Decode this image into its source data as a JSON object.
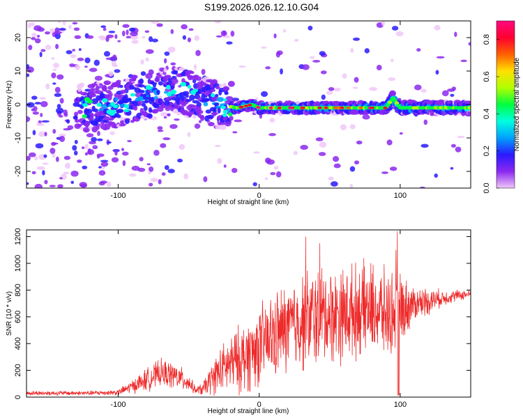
{
  "title": "S199.2026.026.12.10.G04",
  "chart_data": [
    {
      "type": "heatmap",
      "title": "S199.2026.026.12.10.G04",
      "xlabel": "Height of straight line (km)",
      "ylabel": "Frequency (Hz)",
      "xlim": [
        -165,
        150
      ],
      "ylim": [
        -25,
        25
      ],
      "xticks": [
        -100,
        0,
        100
      ],
      "yticks": [
        -20,
        -10,
        0,
        10,
        20
      ],
      "colorbar": {
        "label": "Normalized spectral amplitude",
        "range": [
          0.0,
          0.9
        ],
        "ticks": [
          0.0,
          0.2,
          0.4,
          0.6,
          0.8
        ],
        "colors": [
          "#f0c8f8",
          "#8c28f0",
          "#2a1aff",
          "#00a0ff",
          "#00ffe0",
          "#00ff40",
          "#b0ff00",
          "#ffe000",
          "#ff6000",
          "#ff0030",
          "#ff0a80"
        ]
      },
      "ridge": {
        "description_points_x": [
          -125,
          -100,
          -80,
          -60,
          -45,
          -30,
          -15,
          -5,
          0,
          10,
          30,
          50,
          70,
          90,
          95,
          100,
          120,
          150
        ],
        "description_points_y": [
          -1,
          0,
          3,
          4,
          3,
          0,
          -1,
          0,
          -1,
          -1,
          -1,
          -1,
          -1,
          -1,
          2,
          -1,
          -1,
          -1
        ]
      }
    },
    {
      "type": "line",
      "xlabel": "Height of straight line (km)",
      "ylabel": "SNR (10 * v/v)",
      "xlim": [
        -165,
        150
      ],
      "ylim": [
        0,
        1250
      ],
      "xticks": [
        -100,
        0,
        100
      ],
      "yticks": [
        0,
        200,
        400,
        600,
        800,
        1000,
        1200
      ],
      "series": [
        {
          "name": "SNR",
          "color": "#ee2a2a",
          "envelope_x": [
            -165,
            -120,
            -100,
            -90,
            -80,
            -70,
            -60,
            -50,
            -45,
            -40,
            -30,
            -20,
            -10,
            0,
            10,
            20,
            30,
            40,
            50,
            60,
            70,
            80,
            90,
            100,
            110,
            120,
            130,
            140,
            150
          ],
          "envelope_y": [
            30,
            30,
            35,
            80,
            130,
            180,
            160,
            110,
            50,
            60,
            180,
            250,
            300,
            380,
            450,
            520,
            560,
            600,
            620,
            620,
            650,
            660,
            620,
            650,
            700,
            720,
            740,
            760,
            770
          ],
          "spread_y": [
            20,
            20,
            25,
            60,
            100,
            120,
            120,
            80,
            30,
            60,
            180,
            260,
            320,
            350,
            380,
            400,
            420,
            450,
            420,
            420,
            400,
            400,
            380,
            320,
            150,
            120,
            70,
            50,
            40
          ],
          "peaks": [
            {
              "x": 98,
              "y": 1240
            },
            {
              "x": 33,
              "y": 1200
            },
            {
              "x": 97,
              "y": 1100
            },
            {
              "x": 43,
              "y": 1150
            }
          ]
        }
      ]
    }
  ]
}
